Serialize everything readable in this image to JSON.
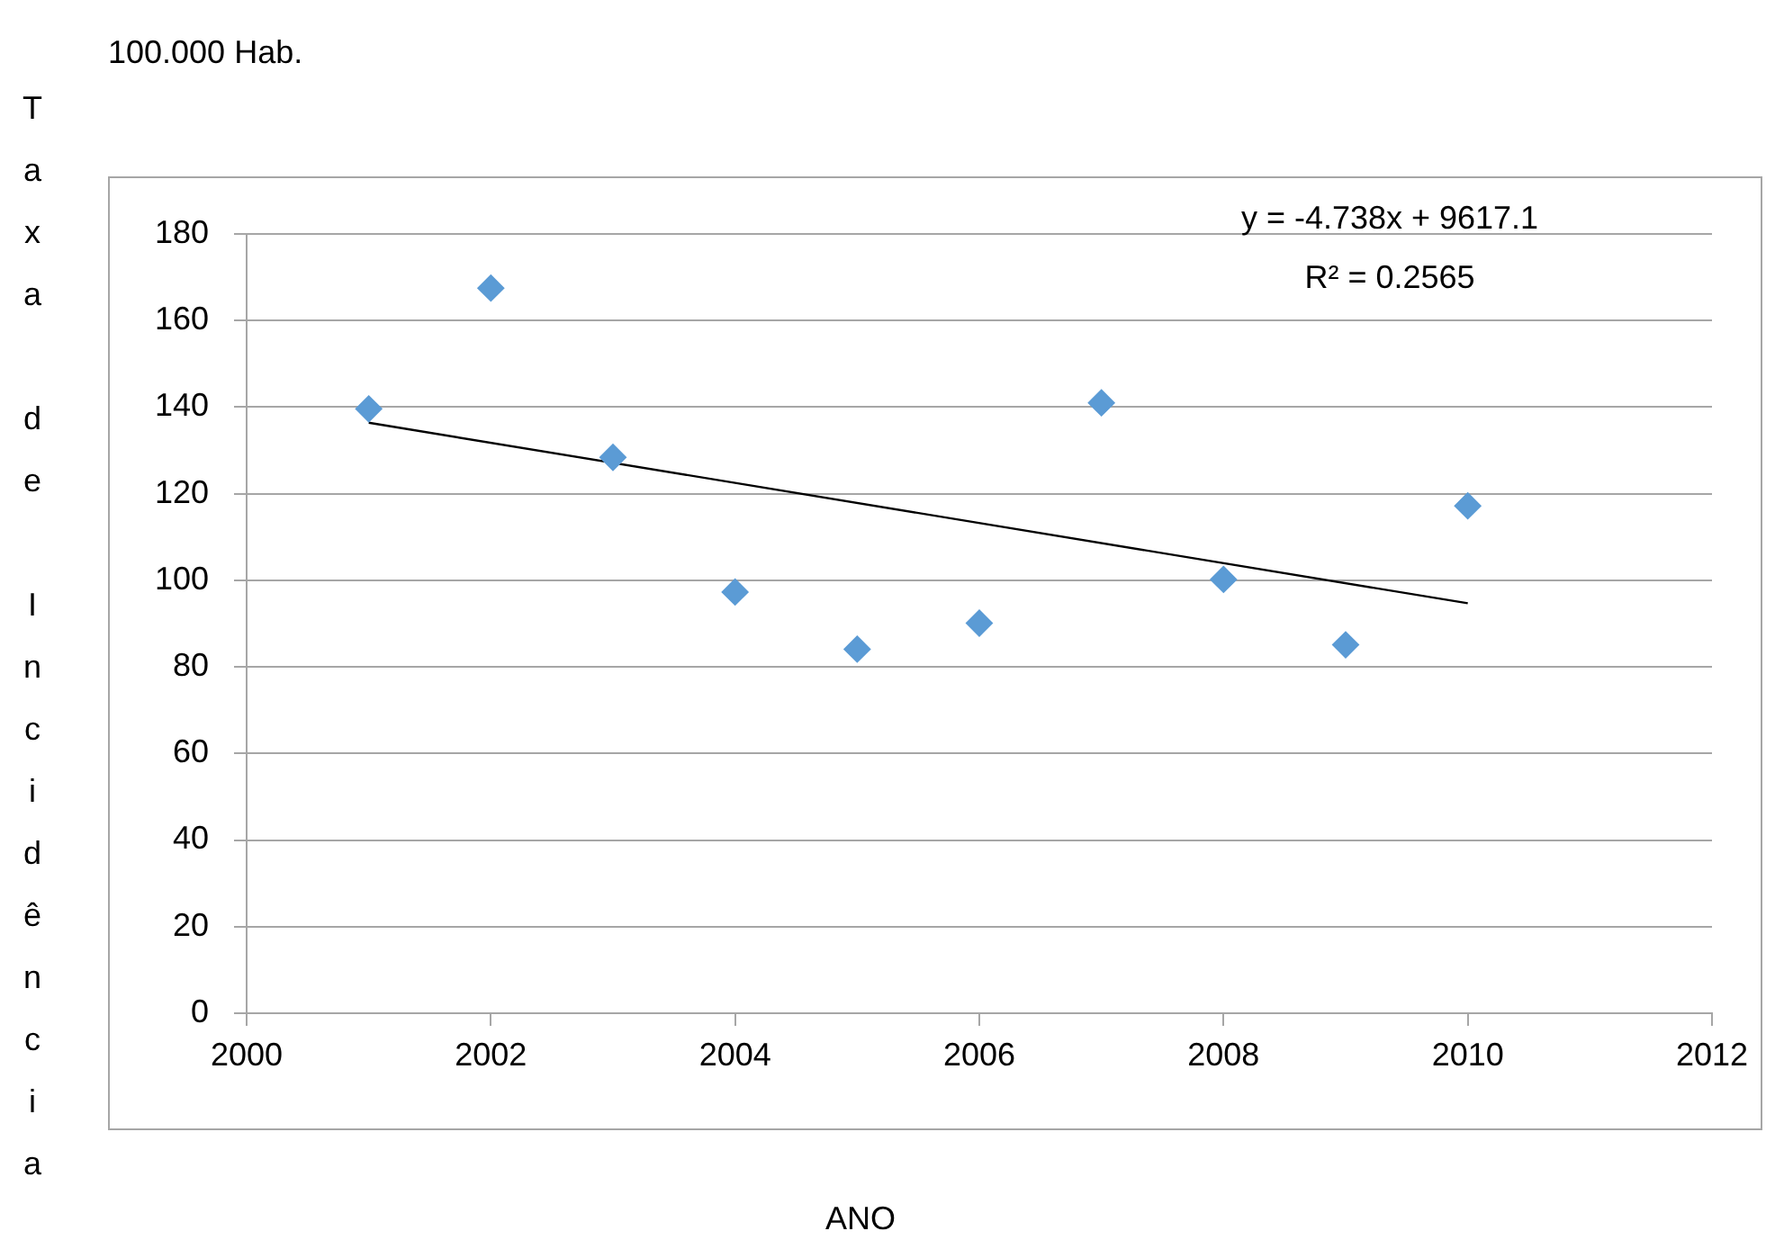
{
  "chart_data": {
    "type": "scatter",
    "xlabel": "ANO",
    "ylabel": "Taxa de Incidência",
    "annotations": [
      "100.000 Hab.",
      "y = -4.738x + 9617.1",
      "R² = 0.2565"
    ],
    "xlim": [
      2000,
      2012
    ],
    "xticks": [
      2000,
      2002,
      2004,
      2006,
      2008,
      2010,
      2012
    ],
    "ylim": [
      0,
      180
    ],
    "yticks": [
      0,
      20,
      40,
      60,
      80,
      100,
      120,
      140,
      160,
      180
    ],
    "grid": "y",
    "legend": false,
    "marker": "diamond",
    "series": [
      {
        "type": "scatter",
        "color": "#5b9bd5",
        "x": [
          2001,
          2002,
          2003,
          2004,
          2005,
          2006,
          2007,
          2008,
          2009,
          2010
        ],
        "values": [
          139.6,
          167.5,
          128.4,
          97.3,
          84.1,
          90.1,
          141.0,
          100.2,
          85.1,
          117.2
        ]
      },
      {
        "type": "line",
        "color": "#000000",
        "marker": "none",
        "x": [
          2001,
          2010
        ],
        "values": [
          136.4,
          94.7
        ]
      }
    ]
  }
}
